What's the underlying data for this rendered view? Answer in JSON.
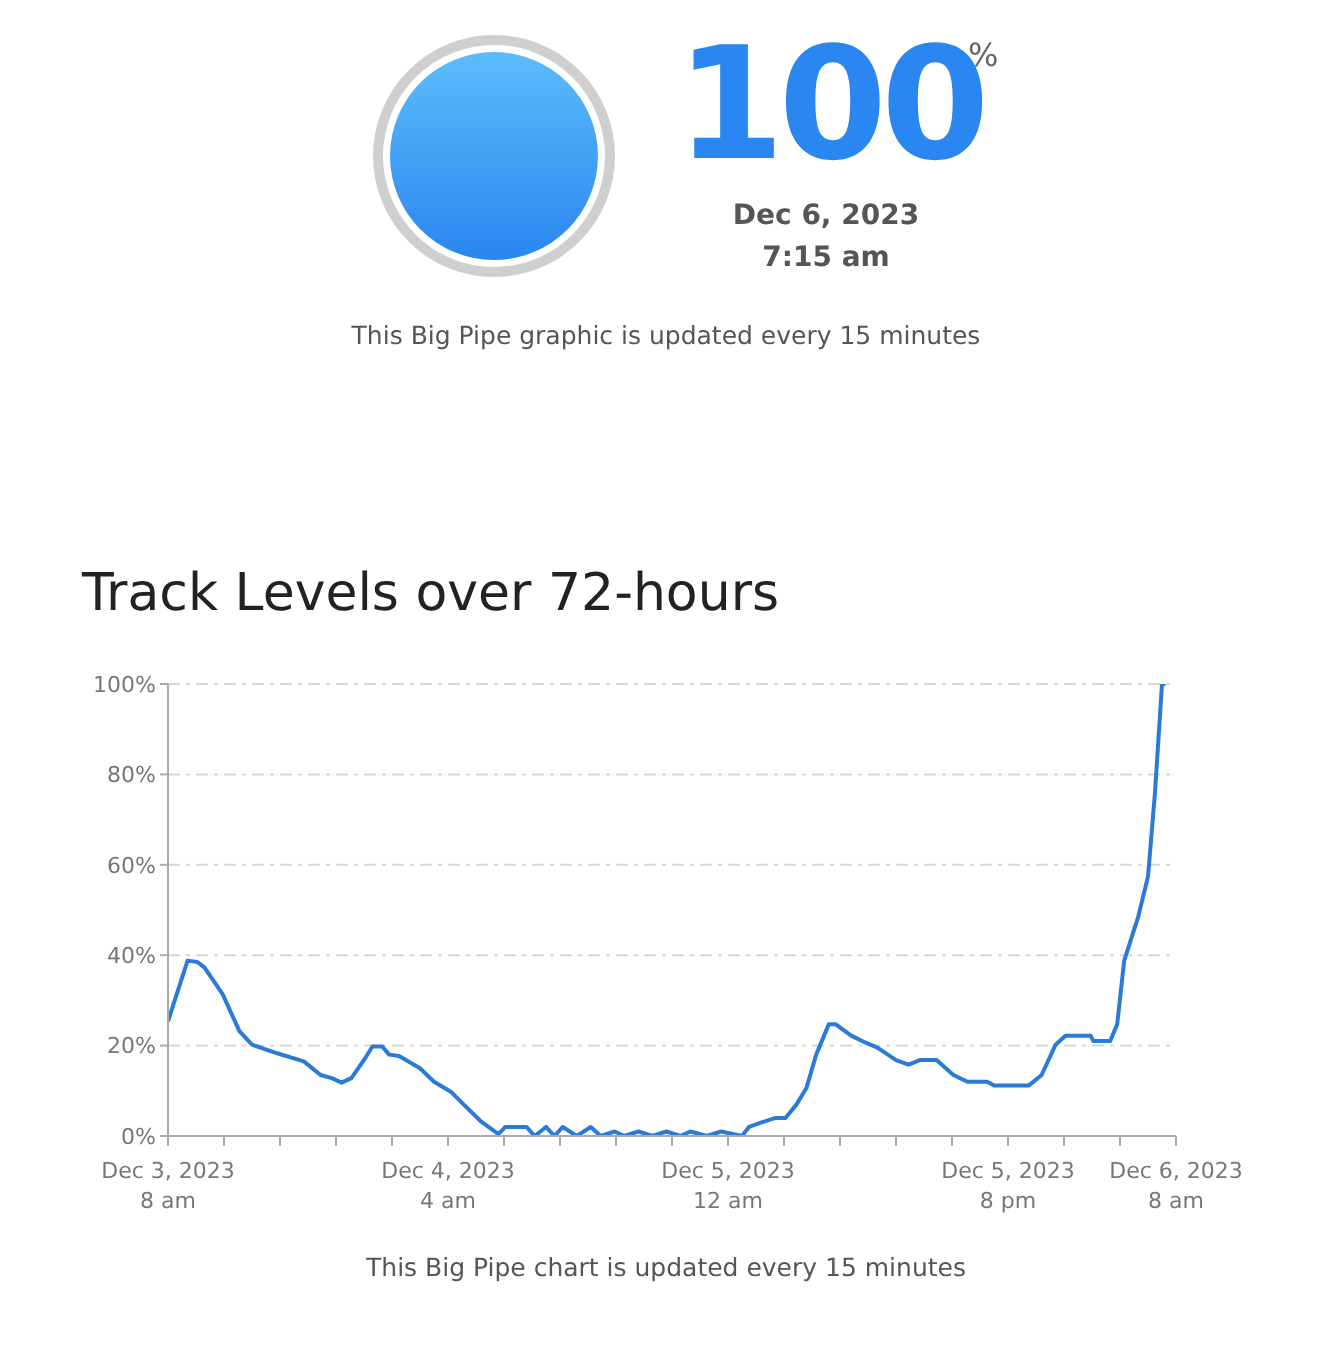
{
  "chart_data": [
    {
      "type": "other",
      "values": [
        100
      ],
      "data_labels": true,
      "color": "#2a86f0",
      "annotations": [
        "%",
        "Dec 6, 2023",
        "7:15 am",
        "This Big Pipe graphic is updated every 15 minutes"
      ]
    },
    {
      "type": "line",
      "title": "Track Levels over 72-hours",
      "color": "#2a7bd8",
      "marker": "none",
      "line_style": "solid",
      "grid": "y",
      "legend": false,
      "x": [
        "2023-12-03T08:00",
        "2023-12-03T09:24",
        "2023-12-03T10:06",
        "2023-12-03T10:36",
        "2023-12-03T11:54",
        "2023-12-03T13:06",
        "2023-12-03T14:00",
        "2023-12-03T15:48",
        "2023-12-03T17:42",
        "2023-12-03T18:54",
        "2023-12-03T19:42",
        "2023-12-03T20:24",
        "2023-12-03T21:06",
        "2023-12-03T22:06",
        "2023-12-03T22:36",
        "2023-12-03T23:18",
        "2023-12-03T23:48",
        "2023-12-04T00:30",
        "2023-12-04T02:00",
        "2023-12-04T03:00",
        "2023-12-04T04:12",
        "2023-12-04T05:24",
        "2023-12-04T06:24",
        "2023-12-04T07:36",
        "2023-12-04T08:06",
        "2023-12-04T09:36",
        "2023-12-04T10:12",
        "2023-12-04T11:00",
        "2023-12-04T11:36",
        "2023-12-04T12:12",
        "2023-12-04T13:12",
        "2023-12-04T14:12",
        "2023-12-04T14:54",
        "2023-12-04T15:54",
        "2023-12-04T16:36",
        "2023-12-04T17:36",
        "2023-12-04T18:36",
        "2023-12-04T19:36",
        "2023-12-04T20:36",
        "2023-12-04T21:18",
        "2023-12-04T22:30",
        "2023-12-04T23:30",
        "2023-12-05T01:00",
        "2023-12-05T01:30",
        "2023-12-05T02:24",
        "2023-12-05T03:24",
        "2023-12-05T04:06",
        "2023-12-05T04:54",
        "2023-12-05T05:36",
        "2023-12-05T06:18",
        "2023-12-05T07:12",
        "2023-12-05T07:42",
        "2023-12-05T08:48",
        "2023-12-05T09:48",
        "2023-12-05T10:42",
        "2023-12-05T12:00",
        "2023-12-05T12:54",
        "2023-12-05T13:42",
        "2023-12-05T14:54",
        "2023-12-05T16:06",
        "2023-12-05T17:06",
        "2023-12-05T18:30",
        "2023-12-05T19:00",
        "2023-12-05T21:30",
        "2023-12-05T22:24",
        "2023-12-05T23:24",
        "2023-12-06T00:06",
        "2023-12-06T01:54",
        "2023-12-06T02:06",
        "2023-12-06T03:18",
        "2023-12-06T03:48",
        "2023-12-06T04:18",
        "2023-12-06T05:18",
        "2023-12-06T06:00",
        "2023-12-06T06:30",
        "2023-12-06T07:00",
        "2023-12-06T07:15"
      ],
      "values": [
        25.4,
        38.8,
        38.5,
        37.3,
        31.4,
        23.2,
        20.2,
        18.3,
        16.5,
        13.5,
        12.8,
        11.8,
        12.8,
        17.3,
        19.8,
        19.8,
        18,
        17.7,
        15,
        12,
        9.8,
        6.1,
        3.1,
        0.4,
        2,
        2,
        0,
        2,
        0,
        2,
        0,
        2,
        0,
        1,
        0,
        1,
        0,
        1,
        0,
        1,
        0,
        1,
        0,
        2,
        3,
        4,
        4,
        7,
        10.6,
        18,
        24.7,
        24.7,
        22.2,
        20.7,
        19.5,
        16.8,
        15.8,
        16.8,
        16.8,
        13.5,
        12,
        12,
        11.2,
        11.2,
        13.5,
        20.2,
        22.2,
        22.2,
        21,
        21,
        24.7,
        38.8,
        48.5,
        57.4,
        76,
        100,
        100
      ],
      "xlim": [
        "2023-12-03T08:00",
        "2023-12-06T08:00"
      ],
      "xticks": [
        {
          "value": "2023-12-03T08:00",
          "label": "Dec 3, 2023\n8 am"
        },
        {
          "value": "2023-12-03T12:00",
          "label": null
        },
        {
          "value": "2023-12-03T16:00",
          "label": null
        },
        {
          "value": "2023-12-03T20:00",
          "label": null
        },
        {
          "value": "2023-12-04T00:00",
          "label": null
        },
        {
          "value": "2023-12-04T04:00",
          "label": "Dec 4, 2023\n4 am"
        },
        {
          "value": "2023-12-04T08:00",
          "label": null
        },
        {
          "value": "2023-12-04T12:00",
          "label": null
        },
        {
          "value": "2023-12-04T16:00",
          "label": null
        },
        {
          "value": "2023-12-04T20:00",
          "label": null
        },
        {
          "value": "2023-12-05T00:00",
          "label": "Dec 5, 2023\n12 am"
        },
        {
          "value": "2023-12-05T04:00",
          "label": null
        },
        {
          "value": "2023-12-05T08:00",
          "label": null
        },
        {
          "value": "2023-12-05T12:00",
          "label": null
        },
        {
          "value": "2023-12-05T16:00",
          "label": null
        },
        {
          "value": "2023-12-05T20:00",
          "label": "Dec 5, 2023\n8 pm"
        },
        {
          "value": "2023-12-06T00:00",
          "label": null
        },
        {
          "value": "2023-12-06T04:00",
          "label": null
        },
        {
          "value": "2023-12-06T08:00",
          "label": "Dec 6, 2023\n8 am"
        }
      ],
      "ylim": [
        0,
        100
      ],
      "yticks": [
        {
          "value": 0,
          "label": "0%"
        },
        {
          "value": 20,
          "label": "20%"
        },
        {
          "value": 40,
          "label": "40%"
        },
        {
          "value": 60,
          "label": "60%"
        },
        {
          "value": 80,
          "label": "80%"
        },
        {
          "value": 100,
          "label": "100%"
        }
      ],
      "annotations": [
        "This Big Pipe chart is updated every 15 minutes"
      ]
    }
  ]
}
